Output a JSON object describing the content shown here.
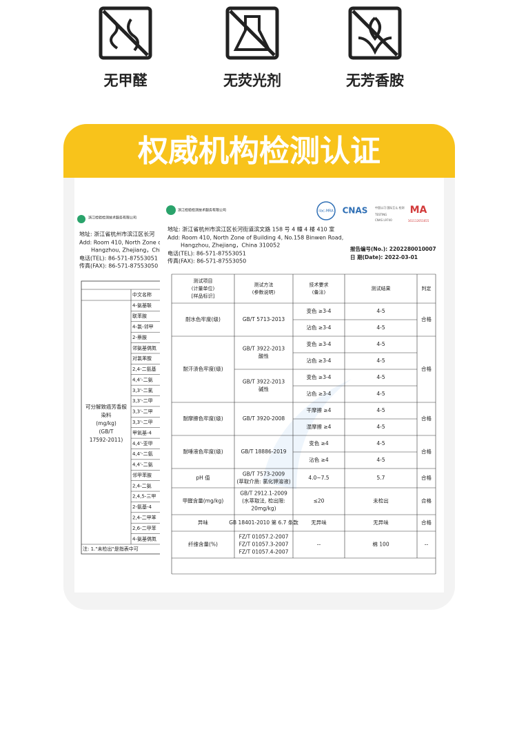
{
  "features": [
    {
      "label": "无甲醛"
    },
    {
      "label": "无荧光剂"
    },
    {
      "label": "无芳香胺"
    }
  ],
  "banner": {
    "title": "权威机构检测认证"
  },
  "back_report": {
    "org": "浙江检验检测技术服务有限公司",
    "address": [
      "地址: 浙江省杭州市滨江区长河",
      "Add: Room 410, North Zone of",
      "Hangzhou, Zhejiang，Chi",
      "电话(TEL):   86-571-87553051",
      "传真(FAX):   86-571-87553050"
    ],
    "header": "中文名称",
    "group": [
      "可分解致癌芳香胺",
      "染料",
      "(mg/kg)",
      "(GB/T",
      "17592-2011)"
    ],
    "substances": [
      "4-氨基联",
      "联苯胺",
      "4-氯-邻甲",
      "2-萘胺",
      "邻氨基偶氮",
      "对氯苯胺",
      "2,4-二氨基",
      "4,4'-二氨",
      "3,3'-二氯",
      "3,3'-二甲",
      "3,3'-二甲",
      "3,3'-二甲",
      "甲氧基-4",
      "4,4'-亚甲",
      "4,4'-二氨",
      "4,4'-二氨",
      "邻甲苯胺",
      "2,4-二氨",
      "2,4,5-三甲",
      "2-氨基-4",
      "2,4-二甲苯",
      "2,6-二甲苯",
      "4-氨基偶氮"
    ],
    "note": "注:    1.\"未检出\"是指表中可"
  },
  "front_report": {
    "org": "浙江检验检测技术服务有限公司",
    "address": [
      "地址: 浙江省杭州市滨江区长河街道滨文路 158 号 4 幢 4 楼 410 室",
      "Add: Room 410, North Zone of Building 4, No.158 Binwen Road,",
      "Hangzhou, Zhejiang，China          310052",
      "电话(TEL):      86-571-87553051",
      "传真(FAX):      86-571-87553050"
    ],
    "marks": [
      "ilac-MRA",
      "CNAS",
      "中国认可 国际互认 检测",
      "TESTING",
      "CNAS L9740",
      "MA",
      "161112051655"
    ],
    "report_no": "报告编号(No.): 2202280010007",
    "date": "日    期(Date): 2022-03-01",
    "columns": [
      [
        "测试项目",
        "(计量单位)",
        "[样品标识]"
      ],
      [
        "测试方法",
        "(参数说明)"
      ],
      [
        "技术要求",
        "(备注)"
      ],
      [
        "测试结果"
      ],
      [
        "判定"
      ]
    ],
    "rows": [
      {
        "item": "耐水色牢度(级)",
        "verdict": "合格",
        "groups": [
          {
            "method": [
              "GB/T 5713-2013"
            ],
            "subs": [
              {
                "req": "变色 ≥3-4",
                "result": "4-5"
              },
              {
                "req": "沾色 ≥3-4",
                "result": "4-5"
              }
            ]
          }
        ]
      },
      {
        "item": "耐汗渍色牢度(级)",
        "verdict": "合格",
        "groups": [
          {
            "method": [
              "GB/T 3922-2013",
              "酸性"
            ],
            "subs": [
              {
                "req": "变色 ≥3-4",
                "result": "4-5"
              },
              {
                "req": "沾色 ≥3-4",
                "result": "4-5"
              }
            ]
          },
          {
            "method": [
              "GB/T 3922-2013",
              "碱性"
            ],
            "subs": [
              {
                "req": "变色 ≥3-4",
                "result": "4-5"
              },
              {
                "req": "沾色 ≥3-4",
                "result": "4-5"
              }
            ]
          }
        ]
      },
      {
        "item": "耐摩擦色牢度(级)",
        "verdict": "合格",
        "groups": [
          {
            "method": [
              "GB/T 3920-2008"
            ],
            "subs": [
              {
                "req": "干摩擦 ≥4",
                "result": "4-5"
              },
              {
                "req": "湿摩擦 ≥4",
                "result": "4-5"
              }
            ]
          }
        ]
      },
      {
        "item": "耐唾液色牢度(级)",
        "verdict": "合格",
        "groups": [
          {
            "method": [
              "GB/T 18886-2019"
            ],
            "subs": [
              {
                "req": "变色 ≥4",
                "result": "4-5"
              },
              {
                "req": "沾色 ≥4",
                "result": "4-5"
              }
            ]
          }
        ]
      },
      {
        "item": "pH 值",
        "verdict": "合格",
        "groups": [
          {
            "method": [
              "GB/T 7573-2009",
              "(萃取介质: 氯化钾溶液)"
            ],
            "subs": [
              {
                "req": "4.0~7.5",
                "result": "5.7"
              }
            ]
          }
        ]
      },
      {
        "item": "甲醛含量(mg/kg)",
        "verdict": "合格",
        "groups": [
          {
            "method": [
              "GB/T 2912.1-2009",
              "(水萃取法, 检出限:",
              "20mg/kg)"
            ],
            "subs": [
              {
                "req": "≤20",
                "result": "未检出"
              }
            ]
          }
        ]
      },
      {
        "item": "异味",
        "verdict": "合格",
        "groups": [
          {
            "method": [
              "GB 18401-2010 第 6.7 条款"
            ],
            "subs": [
              {
                "req": "无异味",
                "result": "无异味"
              }
            ]
          }
        ]
      },
      {
        "item": "纤维含量(%)",
        "verdict": "--",
        "groups": [
          {
            "method": [
              "FZ/T 01057.2-2007",
              "FZ/T 01057.3-2007",
              "FZ/T 01057.4-2007"
            ],
            "subs": [
              {
                "req": "--",
                "result": "棉          100"
              }
            ]
          }
        ]
      }
    ]
  }
}
